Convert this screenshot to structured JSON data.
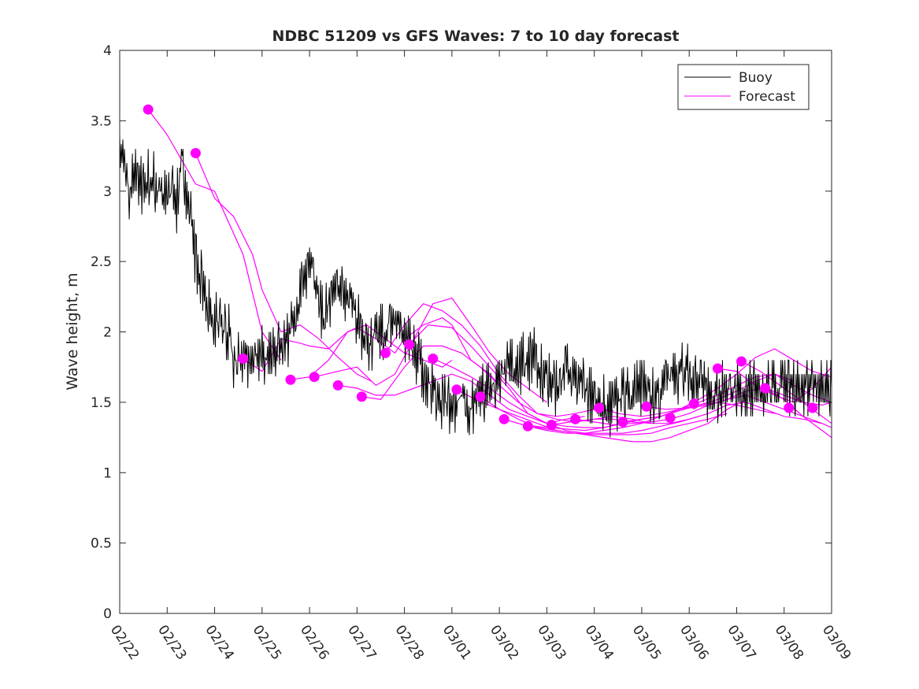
{
  "chart_data": {
    "type": "line",
    "title": "NDBC 51209 vs GFS Waves: 7 to 10 day forecast",
    "xlabel": "",
    "ylabel": "Wave height, m",
    "xlim": [
      0,
      15
    ],
    "ylim": [
      0,
      4
    ],
    "x_ticks": [
      0,
      1,
      2,
      3,
      4,
      5,
      6,
      7,
      8,
      9,
      10,
      11,
      12,
      13,
      14,
      15
    ],
    "x_tick_labels": [
      "02/22",
      "02/23",
      "02/24",
      "02/25",
      "02/26",
      "02/27",
      "02/28",
      "03/01",
      "03/02",
      "03/03",
      "03/04",
      "03/05",
      "03/06",
      "03/07",
      "03/08",
      "03/09"
    ],
    "y_ticks": [
      0,
      0.5,
      1,
      1.5,
      2,
      2.5,
      3,
      3.5,
      4
    ],
    "y_tick_labels": [
      "0",
      "0.5",
      "1",
      "1.5",
      "2",
      "2.5",
      "3",
      "3.5",
      "4"
    ],
    "legend": {
      "location": "top-right",
      "entries": [
        "Buoy",
        "Forecast"
      ]
    },
    "colors": {
      "buoy": "#000000",
      "forecast": "#ff00ff",
      "axes": "#262626"
    },
    "buoy": {
      "name": "Buoy",
      "x": [
        0.0,
        0.1,
        0.2,
        0.3,
        0.4,
        0.5,
        0.6,
        0.7,
        0.8,
        0.9,
        1.0,
        1.1,
        1.2,
        1.3,
        1.4,
        1.5,
        1.6,
        1.7,
        1.8,
        1.9,
        2.0,
        2.1,
        2.2,
        2.3,
        2.4,
        2.5,
        2.6,
        2.7,
        2.8,
        2.9,
        3.0,
        3.1,
        3.2,
        3.3,
        3.4,
        3.5,
        3.6,
        3.7,
        3.8,
        3.9,
        4.0,
        4.1,
        4.2,
        4.3,
        4.4,
        4.5,
        4.6,
        4.7,
        4.8,
        4.9,
        5.0,
        5.1,
        5.2,
        5.3,
        5.4,
        5.5,
        5.6,
        5.7,
        5.8,
        5.9,
        6.0,
        6.1,
        6.2,
        6.3,
        6.4,
        6.5,
        6.6,
        6.7,
        6.8,
        6.9,
        7.0,
        7.1,
        7.2,
        7.3,
        7.4,
        7.5,
        7.6,
        7.7,
        7.8,
        7.9,
        8.0,
        8.1,
        8.2,
        8.3,
        8.4,
        8.5,
        8.6,
        8.7,
        8.8,
        8.9,
        9.0,
        9.1,
        9.2,
        9.3,
        9.4,
        9.5,
        9.6,
        9.7,
        9.8,
        9.9,
        10.0,
        10.1,
        10.2,
        10.3,
        10.4,
        10.5,
        10.6,
        10.7,
        10.8,
        10.9,
        11.0,
        11.1,
        11.2,
        11.3,
        11.4,
        11.5,
        11.6,
        11.7,
        11.8,
        11.9,
        12.0,
        12.1,
        12.2,
        12.3,
        12.4,
        12.5,
        12.6,
        12.7,
        12.8,
        12.9,
        13.0,
        13.1,
        13.2,
        13.3,
        13.4,
        13.5,
        13.6,
        13.7,
        13.8,
        13.9,
        14.0,
        14.1,
        14.2,
        14.3,
        14.4,
        14.5,
        14.6,
        14.7,
        14.8,
        14.9,
        15.0
      ],
      "values": [
        3.4,
        3.2,
        3.0,
        3.1,
        3.1,
        3.0,
        3.1,
        3.1,
        3.0,
        3.0,
        2.9,
        3.0,
        2.9,
        3.3,
        3.0,
        2.8,
        2.5,
        2.4,
        2.3,
        2.15,
        2.1,
        2.05,
        2.0,
        2.0,
        1.8,
        1.8,
        1.85,
        1.8,
        1.8,
        1.85,
        1.85,
        1.8,
        1.8,
        1.9,
        1.85,
        1.9,
        2.0,
        2.1,
        2.25,
        2.4,
        2.5,
        2.4,
        2.2,
        2.1,
        2.2,
        2.3,
        2.35,
        2.25,
        2.3,
        2.2,
        2.1,
        2.0,
        1.95,
        1.9,
        2.05,
        2.0,
        2.0,
        2.1,
        2.05,
        2.05,
        2.0,
        1.9,
        1.85,
        1.8,
        1.7,
        1.65,
        1.6,
        1.55,
        1.5,
        1.5,
        1.45,
        1.5,
        1.55,
        1.5,
        1.45,
        1.5,
        1.6,
        1.55,
        1.6,
        1.65,
        1.7,
        1.7,
        1.75,
        1.75,
        1.7,
        1.8,
        1.75,
        1.85,
        1.8,
        1.7,
        1.7,
        1.6,
        1.6,
        1.65,
        1.7,
        1.75,
        1.7,
        1.65,
        1.6,
        1.55,
        1.55,
        1.5,
        1.5,
        1.45,
        1.45,
        1.5,
        1.55,
        1.55,
        1.55,
        1.6,
        1.6,
        1.6,
        1.55,
        1.55,
        1.6,
        1.7,
        1.65,
        1.65,
        1.7,
        1.75,
        1.7,
        1.65,
        1.6,
        1.6,
        1.55,
        1.55,
        1.55,
        1.6,
        1.6,
        1.6,
        1.6,
        1.6,
        1.6,
        1.6,
        1.6,
        1.6,
        1.6,
        1.6,
        1.6,
        1.6,
        1.6,
        1.6,
        1.6,
        1.6,
        1.6,
        1.6,
        1.6,
        1.6,
        1.6,
        1.6,
        1.6
      ]
    },
    "forecast_series": [
      {
        "name": "Forecast",
        "x": [
          0.6,
          1.0,
          1.6,
          2.0,
          2.6,
          3.0,
          3.4
        ],
        "values": [
          3.58,
          3.4,
          3.05,
          3.0,
          2.55,
          2.0,
          1.8
        ]
      },
      {
        "name": "Forecast",
        "x": [
          1.6,
          2.0,
          2.4,
          2.8,
          3.0,
          3.4,
          3.8,
          4.2,
          4.6,
          5.0,
          5.3
        ],
        "values": [
          3.27,
          2.95,
          2.82,
          2.55,
          2.3,
          2.0,
          2.05,
          1.95,
          1.82,
          1.7,
          1.65
        ]
      },
      {
        "name": "Forecast",
        "x": [
          2.6,
          3.0,
          3.4,
          3.8,
          4.0,
          4.4,
          4.8,
          5.2,
          5.6,
          6.0,
          6.4,
          6.8,
          7.0
        ],
        "values": [
          1.81,
          1.72,
          1.95,
          1.92,
          1.9,
          1.88,
          2.0,
          2.05,
          1.95,
          1.85,
          1.8,
          1.75,
          1.8
        ]
      },
      {
        "name": "Forecast",
        "x": [
          3.6,
          4.0,
          4.4,
          4.8,
          5.0,
          5.4,
          5.8,
          6.0,
          6.4,
          6.8,
          7.0,
          7.4,
          7.8,
          8.0
        ],
        "values": [
          1.66,
          1.68,
          1.8,
          2.0,
          2.03,
          1.95,
          1.85,
          1.95,
          2.05,
          2.1,
          2.05,
          1.8,
          1.7,
          1.62
        ]
      },
      {
        "name": "Forecast",
        "x": [
          4.1,
          4.6,
          5.0,
          5.4,
          5.8,
          6.2,
          6.6,
          7.0,
          7.4,
          7.8,
          8.2,
          8.6,
          9.0
        ],
        "values": [
          1.68,
          1.72,
          1.75,
          1.62,
          1.7,
          1.95,
          2.2,
          2.24,
          2.05,
          1.85,
          1.7,
          1.6,
          1.5
        ]
      },
      {
        "name": "Forecast",
        "x": [
          4.6,
          5.0,
          5.4,
          5.8,
          6.2,
          6.6,
          7.0,
          7.4,
          7.8,
          8.2,
          8.6,
          9.0,
          9.4,
          9.8
        ],
        "values": [
          1.62,
          1.6,
          1.55,
          1.55,
          1.6,
          1.65,
          1.7,
          1.65,
          1.55,
          1.45,
          1.4,
          1.35,
          1.38,
          1.4
        ]
      },
      {
        "name": "Forecast",
        "x": [
          5.1,
          5.5,
          6.0,
          6.4,
          6.8,
          7.2,
          7.6,
          8.0,
          8.4,
          8.8,
          9.2,
          9.6,
          10.0,
          10.4
        ],
        "values": [
          1.54,
          1.52,
          1.75,
          1.9,
          1.9,
          1.85,
          1.75,
          1.62,
          1.5,
          1.42,
          1.4,
          1.42,
          1.45,
          1.44
        ]
      },
      {
        "name": "Forecast",
        "x": [
          5.6,
          6.0,
          6.4,
          6.8,
          7.2,
          7.6,
          8.0,
          8.4,
          8.8,
          9.2,
          9.6,
          10.0,
          10.4,
          10.8,
          11.2
        ],
        "values": [
          1.85,
          2.05,
          2.2,
          2.15,
          2.05,
          1.9,
          1.7,
          1.55,
          1.42,
          1.38,
          1.36,
          1.38,
          1.4,
          1.38,
          1.35
        ]
      },
      {
        "name": "Forecast",
        "x": [
          6.1,
          6.5,
          7.0,
          7.4,
          7.8,
          8.2,
          8.6,
          9.0,
          9.4,
          9.8,
          10.2,
          10.6,
          11.0,
          11.4
        ],
        "values": [
          1.91,
          2.05,
          2.03,
          1.9,
          1.75,
          1.6,
          1.42,
          1.35,
          1.33,
          1.32,
          1.32,
          1.35,
          1.38,
          1.4
        ]
      },
      {
        "name": "Forecast",
        "x": [
          6.6,
          7.0,
          7.4,
          7.8,
          8.2,
          8.6,
          9.0,
          9.4,
          9.8,
          10.2,
          10.6,
          11.0,
          11.4,
          11.8,
          12.2
        ],
        "values": [
          1.81,
          1.75,
          1.68,
          1.6,
          1.5,
          1.42,
          1.35,
          1.3,
          1.28,
          1.28,
          1.28,
          1.3,
          1.33,
          1.36,
          1.4
        ]
      },
      {
        "name": "Forecast",
        "x": [
          7.1,
          7.5,
          8.0,
          8.4,
          8.8,
          9.2,
          9.6,
          10.0,
          10.4,
          10.8,
          11.2,
          11.6,
          12.0,
          12.4,
          12.8
        ],
        "values": [
          1.59,
          1.52,
          1.45,
          1.4,
          1.35,
          1.3,
          1.28,
          1.27,
          1.27,
          1.27,
          1.28,
          1.32,
          1.35,
          1.38,
          1.42
        ]
      },
      {
        "name": "Forecast",
        "x": [
          7.6,
          8.0,
          8.4,
          8.8,
          9.2,
          9.6,
          10.0,
          10.4,
          10.8,
          11.2,
          11.6,
          12.0,
          12.4,
          12.8,
          13.2
        ],
        "values": [
          1.54,
          1.45,
          1.38,
          1.32,
          1.3,
          1.28,
          1.26,
          1.24,
          1.22,
          1.22,
          1.25,
          1.3,
          1.35,
          1.45,
          1.52
        ]
      },
      {
        "name": "Forecast",
        "x": [
          8.1,
          8.5,
          9.0,
          9.4,
          9.8,
          10.2,
          10.6,
          11.0,
          11.4,
          11.8,
          12.2,
          12.6,
          13.0,
          13.4,
          13.8
        ],
        "values": [
          1.38,
          1.34,
          1.32,
          1.31,
          1.3,
          1.32,
          1.35,
          1.38,
          1.4,
          1.44,
          1.48,
          1.5,
          1.48,
          1.45,
          1.42
        ]
      },
      {
        "name": "Forecast",
        "x": [
          8.6,
          9.0,
          9.4,
          9.8,
          10.2,
          10.6,
          11.0,
          11.4,
          11.8,
          12.2,
          12.6,
          13.0,
          13.4,
          13.8,
          14.2
        ],
        "values": [
          1.33,
          1.3,
          1.28,
          1.28,
          1.3,
          1.32,
          1.35,
          1.4,
          1.45,
          1.5,
          1.55,
          1.62,
          1.68,
          1.7,
          1.65
        ]
      },
      {
        "name": "Forecast",
        "x": [
          9.1,
          9.5,
          10.0,
          10.4,
          10.8,
          11.2,
          11.6,
          12.0,
          12.4,
          12.8,
          13.2,
          13.6,
          14.0,
          14.4,
          14.8
        ],
        "values": [
          1.34,
          1.36,
          1.38,
          1.38,
          1.36,
          1.35,
          1.35,
          1.38,
          1.42,
          1.48,
          1.5,
          1.45,
          1.4,
          1.38,
          1.35
        ]
      },
      {
        "name": "Forecast",
        "x": [
          9.6,
          10.0,
          10.4,
          10.8,
          11.2,
          11.6,
          12.0,
          12.4,
          12.8,
          13.2,
          13.6,
          14.0,
          14.4,
          14.8,
          15.0
        ],
        "values": [
          1.38,
          1.36,
          1.34,
          1.35,
          1.36,
          1.38,
          1.42,
          1.48,
          1.52,
          1.55,
          1.5,
          1.45,
          1.4,
          1.35,
          1.32
        ]
      },
      {
        "name": "Forecast",
        "x": [
          10.1,
          10.5,
          11.0,
          11.4,
          11.8,
          12.2,
          12.6,
          13.0,
          13.4,
          13.8,
          14.2,
          14.6,
          15.0
        ],
        "values": [
          1.46,
          1.42,
          1.4,
          1.42,
          1.45,
          1.48,
          1.52,
          1.58,
          1.65,
          1.7,
          1.62,
          1.55,
          1.5
        ]
      },
      {
        "name": "Forecast",
        "x": [
          10.6,
          11.0,
          11.4,
          11.8,
          12.2,
          12.6,
          13.0,
          13.4,
          13.8,
          14.2,
          14.6,
          15.0
        ],
        "values": [
          1.36,
          1.38,
          1.4,
          1.45,
          1.52,
          1.6,
          1.7,
          1.82,
          1.88,
          1.8,
          1.72,
          1.68
        ]
      },
      {
        "name": "Forecast",
        "x": [
          11.1,
          11.5,
          12.0,
          12.4,
          12.8,
          13.2,
          13.6,
          14.0,
          14.4,
          14.8,
          15.0
        ],
        "values": [
          1.47,
          1.45,
          1.46,
          1.48,
          1.52,
          1.58,
          1.6,
          1.55,
          1.5,
          1.48,
          1.5
        ]
      },
      {
        "name": "Forecast",
        "x": [
          12.6,
          13.0,
          13.4,
          13.8,
          14.2,
          14.6,
          15.0
        ],
        "values": [
          1.74,
          1.72,
          1.62,
          1.55,
          1.5,
          1.6,
          1.75
        ]
      },
      {
        "name": "Forecast",
        "x": [
          13.1,
          13.5,
          14.0,
          14.4,
          14.8,
          15.0
        ],
        "values": [
          1.79,
          1.72,
          1.6,
          1.5,
          1.4,
          1.35
        ]
      },
      {
        "name": "Forecast",
        "x": [
          13.6,
          14.0,
          14.4,
          14.8,
          15.0
        ],
        "values": [
          1.6,
          1.52,
          1.4,
          1.3,
          1.25
        ]
      }
    ],
    "forecast_markers": {
      "x": [
        0.6,
        1.6,
        2.6,
        3.6,
        4.1,
        4.6,
        5.1,
        5.6,
        6.1,
        6.6,
        7.1,
        7.6,
        8.1,
        8.6,
        9.1,
        9.6,
        10.1,
        10.6,
        11.1,
        11.6,
        12.1,
        12.6,
        13.1,
        13.6,
        14.1,
        14.6
      ],
      "values": [
        3.58,
        3.27,
        1.81,
        1.66,
        1.68,
        1.62,
        1.54,
        1.85,
        1.91,
        1.81,
        1.59,
        1.54,
        1.38,
        1.33,
        1.34,
        1.38,
        1.46,
        1.36,
        1.47,
        1.39,
        1.49,
        1.74,
        1.79,
        1.6,
        1.46,
        1.46
      ]
    }
  }
}
